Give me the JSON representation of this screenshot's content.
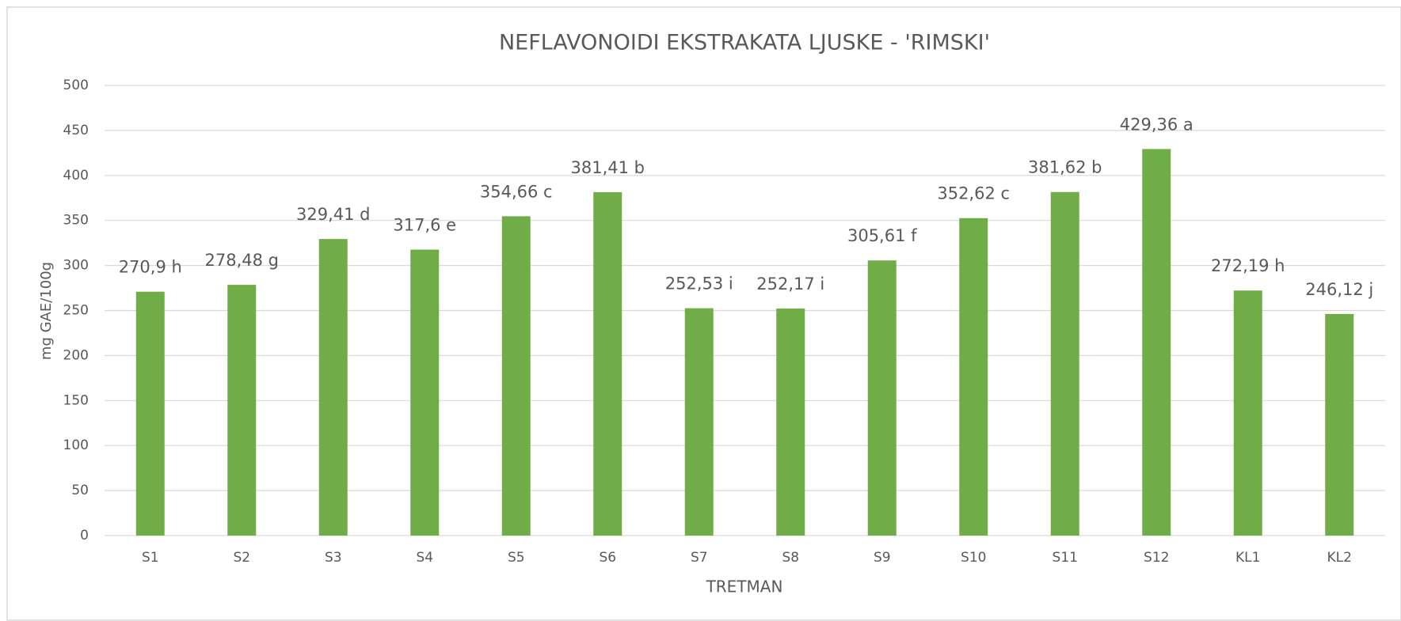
{
  "chart_data": {
    "type": "bar",
    "title": "NEFLAVONOIDI EKSTRAKATA LJUSKE - 'RIMSKI'",
    "x_label": "TRETMAN",
    "y_label": "mg GAE/100g",
    "categories": [
      "S1",
      "S2",
      "S3",
      "S4",
      "S5",
      "S6",
      "S7",
      "S8",
      "S9",
      "S10",
      "S11",
      "S12",
      "KL1",
      "KL2"
    ],
    "values": [
      270.9,
      278.48,
      329.41,
      317.6,
      354.66,
      381.41,
      252.53,
      252.17,
      305.61,
      352.62,
      381.62,
      429.36,
      272.19,
      246.12
    ],
    "value_labels": [
      "270,9 h",
      "278,48 g",
      "329,41 d",
      "317,6 e",
      "354,66 c",
      "381,41 b",
      "252,53 i",
      "252,17 i",
      "305,61 f",
      "352,62 c",
      "381,62 b",
      "429,36 a",
      "272,19 h",
      "246,12 j"
    ],
    "color": "#70ad47",
    "ylim": [
      0,
      500
    ],
    "yticks": [
      0,
      50,
      100,
      150,
      200,
      250,
      300,
      350,
      400,
      450,
      500
    ],
    "grid": true
  }
}
